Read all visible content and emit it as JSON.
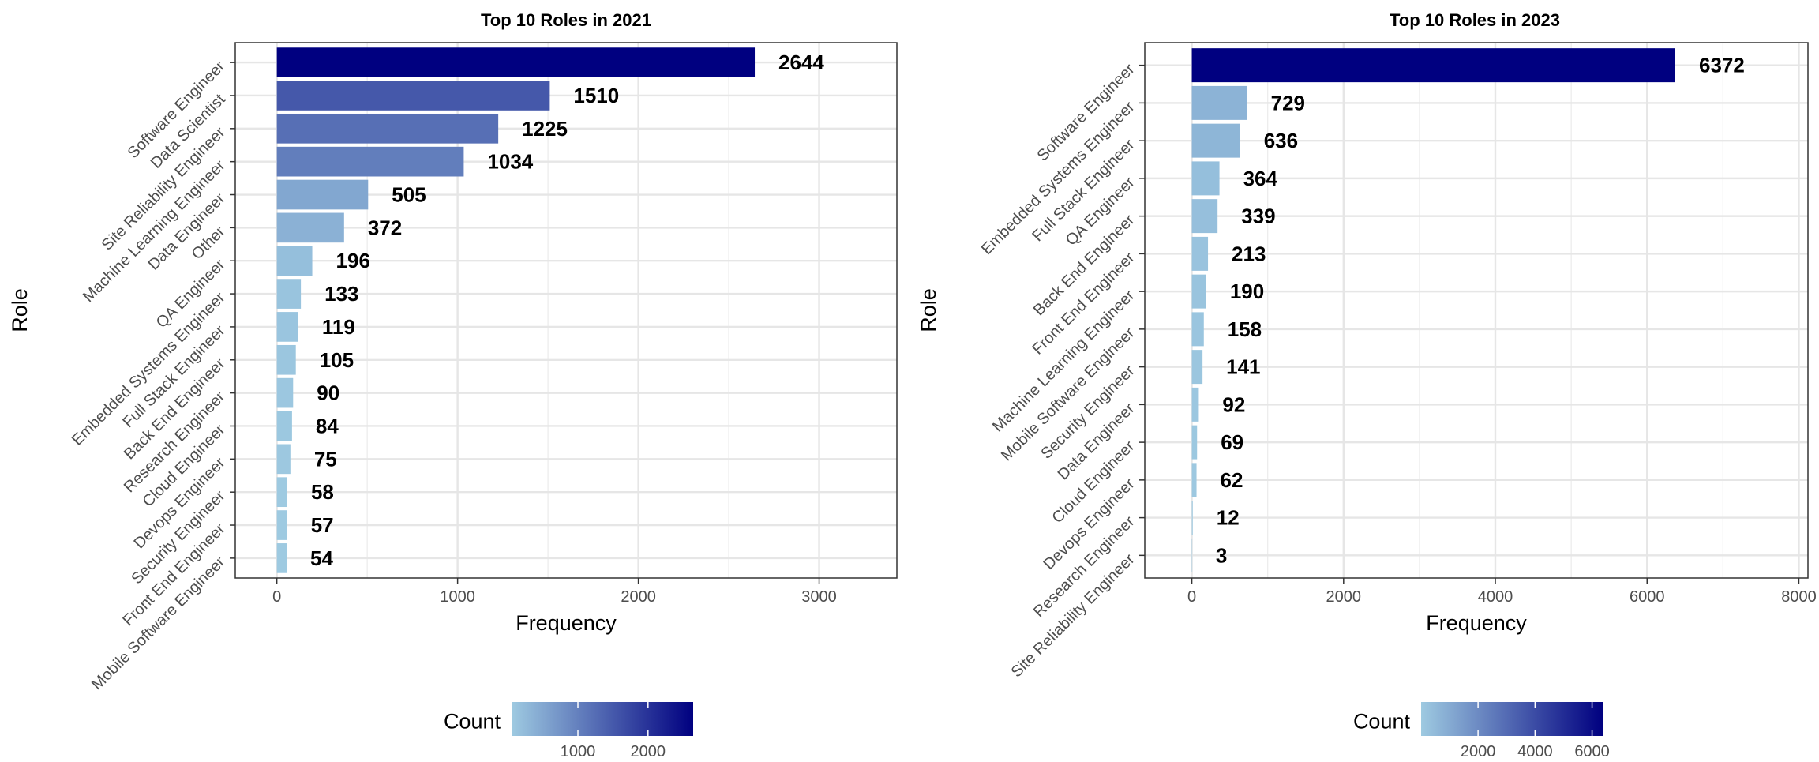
{
  "chart_data": [
    {
      "type": "bar",
      "orientation": "horizontal",
      "title": "Top 10 Roles in 2021",
      "xlabel": "Frequency",
      "ylabel": "Role",
      "xlim": [
        -230,
        3430
      ],
      "xticks": [
        0,
        1000,
        2000,
        3000
      ],
      "grid": true,
      "categories": [
        "Software Engineer",
        "Data Scientist",
        "Site Reliability Engineer",
        "Machine Learning Engineer",
        "Data Engineer",
        "Other",
        "QA Engineer",
        "Embedded Systems Engineer",
        "Full Stack Engineer",
        "Back End Engineer",
        "Research Engineer",
        "Cloud Engineer",
        "Devops Engineer",
        "Security Engineer",
        "Front End Engineer",
        "Mobile Software Engineer"
      ],
      "values": [
        2644,
        1510,
        1225,
        1034,
        505,
        372,
        196,
        133,
        119,
        105,
        90,
        84,
        75,
        58,
        57,
        54
      ],
      "color_scale": {
        "low": "#9ecae1",
        "high": "#000080",
        "min": 54,
        "max": 2644
      },
      "legend": {
        "title": "Count",
        "ticks": [
          1000,
          2000
        ],
        "position": "bottom"
      }
    },
    {
      "type": "bar",
      "orientation": "horizontal",
      "title": "Top 10 Roles in 2023",
      "xlabel": "Frequency",
      "ylabel": "Role",
      "xlim": [
        -620,
        8120
      ],
      "xticks": [
        0,
        2000,
        4000,
        6000,
        8000
      ],
      "grid": true,
      "categories": [
        "Software Engineer",
        "Embedded Systems Engineer",
        "Full Stack Engineer",
        "QA Engineer",
        "Back End Engineer",
        "Front End Engineer",
        "Machine Learning Engineer",
        "Mobile Software Engineer",
        "Security Engineer",
        "Data Engineer",
        "Cloud Engineer",
        "Devops Engineer",
        "Research Engineer",
        "Site Reliability Engineer"
      ],
      "values": [
        6372,
        729,
        636,
        364,
        339,
        213,
        190,
        158,
        141,
        92,
        69,
        62,
        12,
        3
      ],
      "color_scale": {
        "low": "#9ecae1",
        "high": "#000080",
        "min": 3,
        "max": 6372
      },
      "legend": {
        "title": "Count",
        "ticks": [
          2000,
          4000,
          6000
        ],
        "position": "bottom"
      }
    }
  ]
}
